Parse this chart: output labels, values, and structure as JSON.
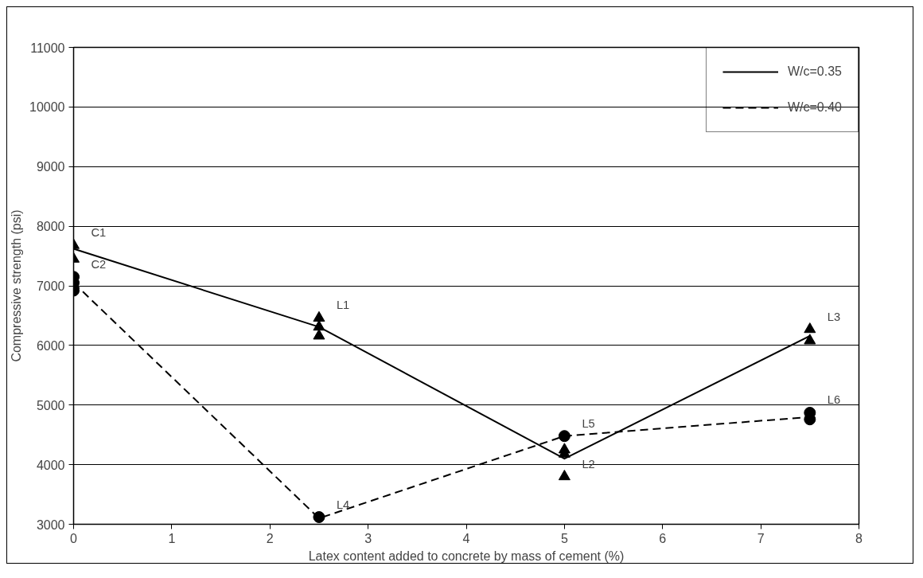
{
  "chart_data": {
    "type": "line",
    "xlabel": "Latex content added to concrete by mass of cement (%)",
    "ylabel": "Compressive strength (psi)",
    "xlim": [
      0,
      8
    ],
    "xticks": [
      0,
      1,
      2,
      3,
      4,
      5,
      6,
      7,
      8
    ],
    "ylim": [
      3000,
      11000
    ],
    "yticks": [
      3000,
      4000,
      5000,
      6000,
      7000,
      8000,
      9000,
      10000,
      11000
    ],
    "grid": "y",
    "legend": "top right",
    "series": [
      {
        "name": "W/c=0.35",
        "color": "#000000",
        "line_style": "solid",
        "marker": "none",
        "x": [
          0,
          2.5,
          5,
          7.5
        ],
        "values": [
          7620,
          6310,
          4100,
          6160
        ]
      },
      {
        "name": "W/c=0.40",
        "color": "#000000",
        "line_style": "dashed",
        "marker": "none",
        "x": [
          0,
          2.5,
          5,
          7.5
        ],
        "values": [
          7050,
          3100,
          4480,
          4800
        ]
      },
      {
        "type": "scatter",
        "color": "#000000",
        "marker": "triangle",
        "x": [
          0,
          0,
          2.5,
          2.5,
          2.5,
          5,
          5,
          5,
          7.5,
          7.5
        ],
        "values": [
          7680,
          7450,
          6460,
          6310,
          6160,
          4250,
          4180,
          3800,
          6270,
          6080
        ]
      },
      {
        "type": "scatter",
        "color": "#000000",
        "marker": "circle",
        "x": [
          0,
          0,
          0,
          2.5,
          5,
          7.5,
          7.5
        ],
        "values": [
          7150,
          7050,
          6920,
          3120,
          4480,
          4870,
          4760
        ]
      }
    ],
    "annotations": [
      {
        "text": "C1",
        "x": 0,
        "y": 7680
      },
      {
        "text": "C2",
        "x": 0,
        "y": 7150
      },
      {
        "text": "L1",
        "x": 2.5,
        "y": 6460
      },
      {
        "text": "L4",
        "x": 2.5,
        "y": 3120
      },
      {
        "text": "L5",
        "x": 5,
        "y": 4480
      },
      {
        "text": "L2",
        "x": 5,
        "y": 3800
      },
      {
        "text": "L3",
        "x": 7.5,
        "y": 6270
      },
      {
        "text": "L6",
        "x": 7.5,
        "y": 4870
      }
    ]
  }
}
